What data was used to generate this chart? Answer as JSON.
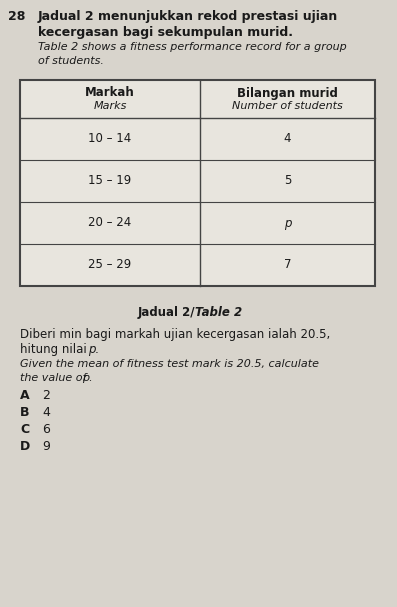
{
  "question_number": "28",
  "title_malay_line1": "Jadual 2 menunjukkan rekod prestasi ujian",
  "title_malay_line2": "kecergasan bagi sekumpulan murid.",
  "title_eng_line1": "Table 2 shows a fitness performance record for a group",
  "title_eng_line2": "of students.",
  "col1_header_malay": "Markah",
  "col1_header_english": "Marks",
  "col2_header_malay": "Bilangan murid",
  "col2_header_english": "Number of students",
  "table_rows": [
    [
      "10 – 14",
      "4"
    ],
    [
      "15 – 19",
      "5"
    ],
    [
      "20 – 24",
      "p"
    ],
    [
      "25 – 29",
      "7"
    ]
  ],
  "caption_bold": "Jadual 2/",
  "caption_italic": "Table 2",
  "body_malay_line1": "Diberi min bagi markah ujian kecergasan ialah 20.5,",
  "body_malay_line2": "hitung nilai ",
  "body_malay_p": "p.",
  "body_eng_line1": "Given the mean of fitness test mark is 20.5, calculate",
  "body_eng_line2": "the value of ",
  "body_eng_p": "p.",
  "options": [
    [
      "A",
      "2"
    ],
    [
      "B",
      "4"
    ],
    [
      "C",
      "6"
    ],
    [
      "D",
      "9"
    ]
  ],
  "bg_color": "#d8d4cc",
  "table_bg": "#e8e5de",
  "border_color": "#444444",
  "text_color": "#1a1a1a"
}
